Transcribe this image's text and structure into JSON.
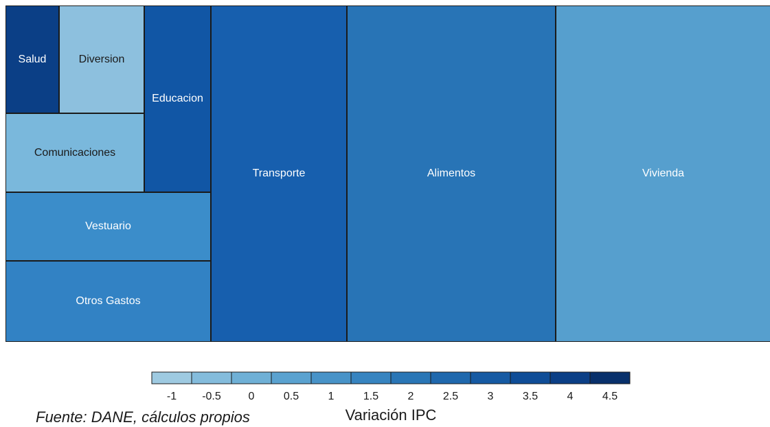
{
  "chart_data": {
    "type": "treemap",
    "color_scale": {
      "title": "Variación IPC",
      "ticks": [
        "-1",
        "-0.5",
        "0",
        "0.5",
        "1",
        "1.5",
        "2",
        "2.5",
        "3",
        "3.5",
        "4",
        "4.5"
      ],
      "colors": [
        "#9ecae1",
        "#84bcdc",
        "#6fb0d6",
        "#5aa2d0",
        "#4893c8",
        "#3784c0",
        "#2a76b6",
        "#1f68ad",
        "#165aa3",
        "#0f4d97",
        "#0b3f86",
        "#08306b"
      ]
    },
    "tiles": [
      {
        "name": "Salud",
        "value": 4.0,
        "color": "#0b3f86"
      },
      {
        "name": "Diversion",
        "value": -1.0,
        "color": "#8dc0de"
      },
      {
        "name": "Educacion",
        "value": 3.0,
        "color": "#1156a5"
      },
      {
        "name": "Comunicaciones",
        "value": -0.7,
        "color": "#7ab8dc"
      },
      {
        "name": "Vestuario",
        "value": 1.0,
        "color": "#3b8dca"
      },
      {
        "name": "Otros Gastos",
        "value": 1.5,
        "color": "#3282c4"
      },
      {
        "name": "Transporte",
        "value": 2.7,
        "color": "#175fae"
      },
      {
        "name": "Alimentos",
        "value": 2.0,
        "color": "#2874b6"
      },
      {
        "name": "Vivienda",
        "value": 0.6,
        "color": "#569fce"
      }
    ]
  },
  "footnote": "Fuente: DANE, cálculos propios"
}
